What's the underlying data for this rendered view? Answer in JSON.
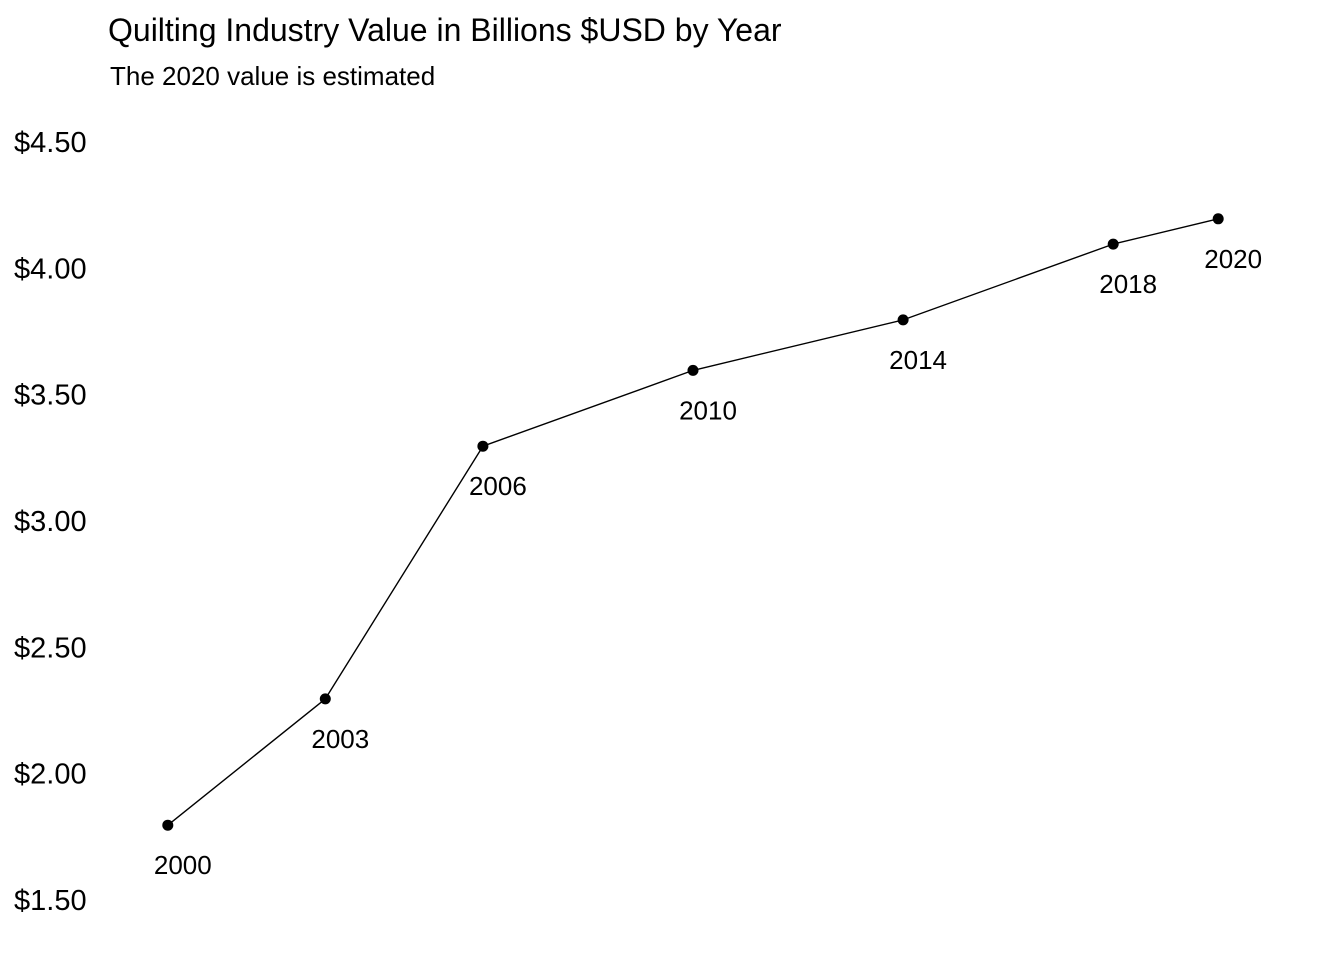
{
  "chart_data": {
    "type": "line",
    "title": "Quilting Industry Value in Billions $USD by Year",
    "subtitle": "The 2020 value is estimated",
    "xlabel": "",
    "ylabel": "",
    "x": [
      2000,
      2003,
      2006,
      2010,
      2014,
      2018,
      2020
    ],
    "point_labels": [
      "2000",
      "2003",
      "2006",
      "2010",
      "2014",
      "2018",
      "2020"
    ],
    "series": [
      {
        "values": [
          1.8,
          2.3,
          3.3,
          3.6,
          3.8,
          4.1,
          4.2
        ]
      }
    ],
    "xlim": [
      1998.9,
      2021.1
    ],
    "ylim": [
      1.5,
      4.5
    ],
    "yticks": [
      1.5,
      2.0,
      2.5,
      3.0,
      3.5,
      4.0,
      4.5
    ],
    "ytick_labels": [
      "$1.50",
      "$2.00",
      "$2.50",
      "$3.00",
      "$3.50",
      "$4.00",
      "$4.50"
    ],
    "grid": false,
    "legend": "none",
    "colors": {
      "line": "#000000",
      "point": "#000000"
    }
  }
}
